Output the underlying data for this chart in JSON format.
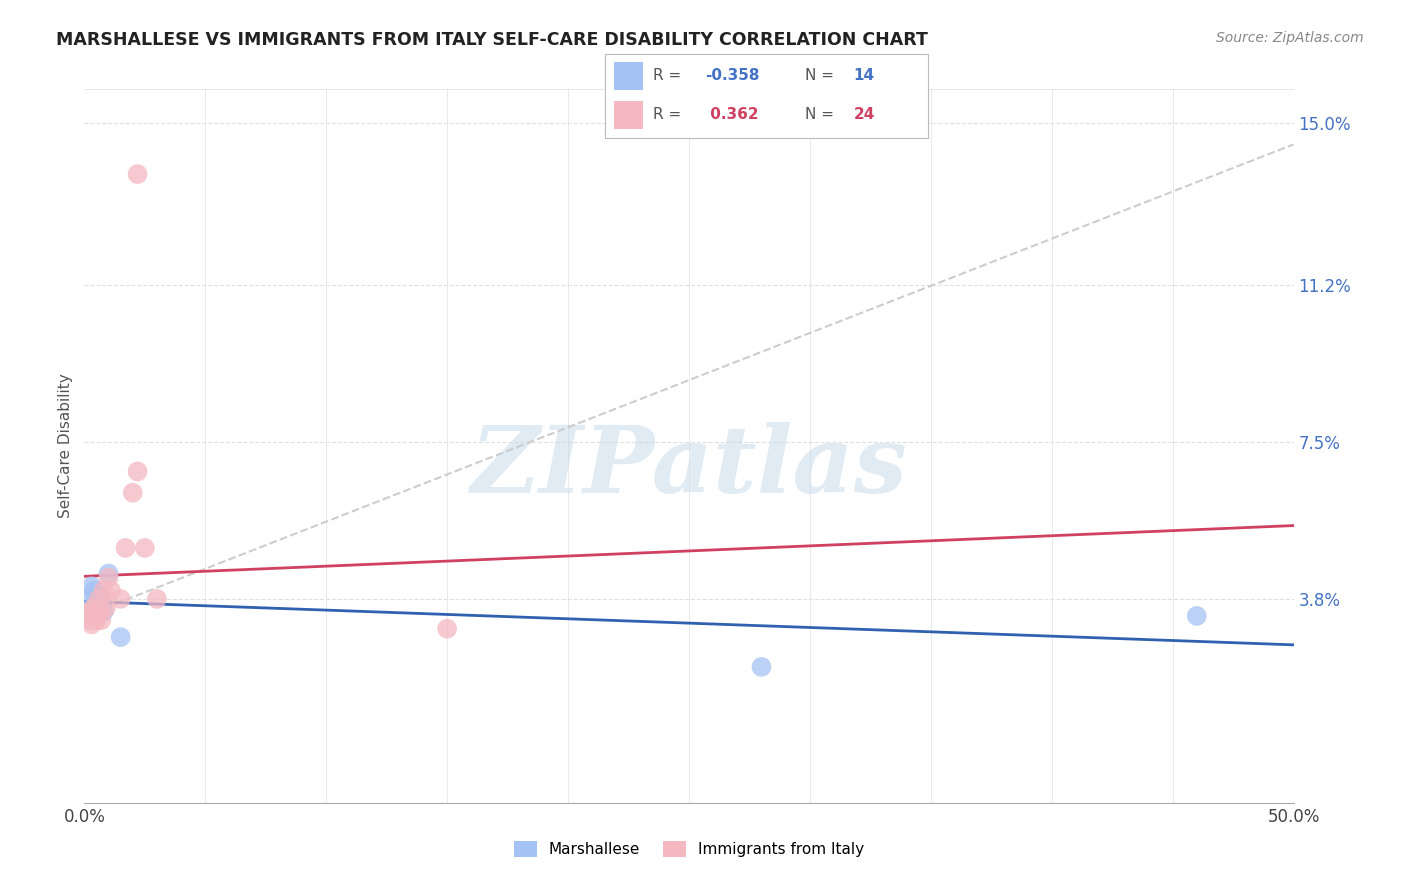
{
  "title": "MARSHALLESE VS IMMIGRANTS FROM ITALY SELF-CARE DISABILITY CORRELATION CHART",
  "source": "Source: ZipAtlas.com",
  "ylabel": "Self-Care Disability",
  "xlim": [
    0.0,
    0.5
  ],
  "ylim": [
    -0.01,
    0.158
  ],
  "blue_color": "#a4c2f4",
  "pink_color": "#f4b8c1",
  "blue_line_color": "#3060b0",
  "pink_line_color": "#d04060",
  "watermark_text": "ZIPatlas",
  "legend_label_blue": "Marshallese",
  "legend_label_pink": "Immigrants from Italy",
  "blue_x": [
    0.001,
    0.003,
    0.004,
    0.005,
    0.005,
    0.006,
    0.006,
    0.007,
    0.007,
    0.008,
    0.01,
    0.015,
    0.28,
    0.46
  ],
  "blue_y": [
    0.038,
    0.041,
    0.04,
    0.036,
    0.038,
    0.037,
    0.039,
    0.036,
    0.038,
    0.035,
    0.044,
    0.029,
    0.022,
    0.034
  ],
  "pink_x": [
    0.001,
    0.002,
    0.002,
    0.003,
    0.004,
    0.004,
    0.005,
    0.005,
    0.006,
    0.006,
    0.007,
    0.007,
    0.008,
    0.009,
    0.01,
    0.011,
    0.015,
    0.017,
    0.02,
    0.022,
    0.025,
    0.03,
    0.15,
    0.022
  ],
  "pink_y": [
    0.034,
    0.033,
    0.035,
    0.032,
    0.034,
    0.036,
    0.035,
    0.033,
    0.036,
    0.038,
    0.035,
    0.033,
    0.04,
    0.036,
    0.043,
    0.04,
    0.038,
    0.05,
    0.063,
    0.068,
    0.05,
    0.038,
    0.031,
    0.138
  ],
  "ytick_positions": [
    0.038,
    0.075,
    0.112,
    0.15
  ],
  "ytick_labels": [
    "3.8%",
    "7.5%",
    "11.2%",
    "15.0%"
  ],
  "xtick_positions": [
    0.0,
    0.5
  ],
  "xtick_labels": [
    "0.0%",
    "50.0%"
  ],
  "background_color": "#ffffff",
  "grid_color": "#e0e0e0"
}
